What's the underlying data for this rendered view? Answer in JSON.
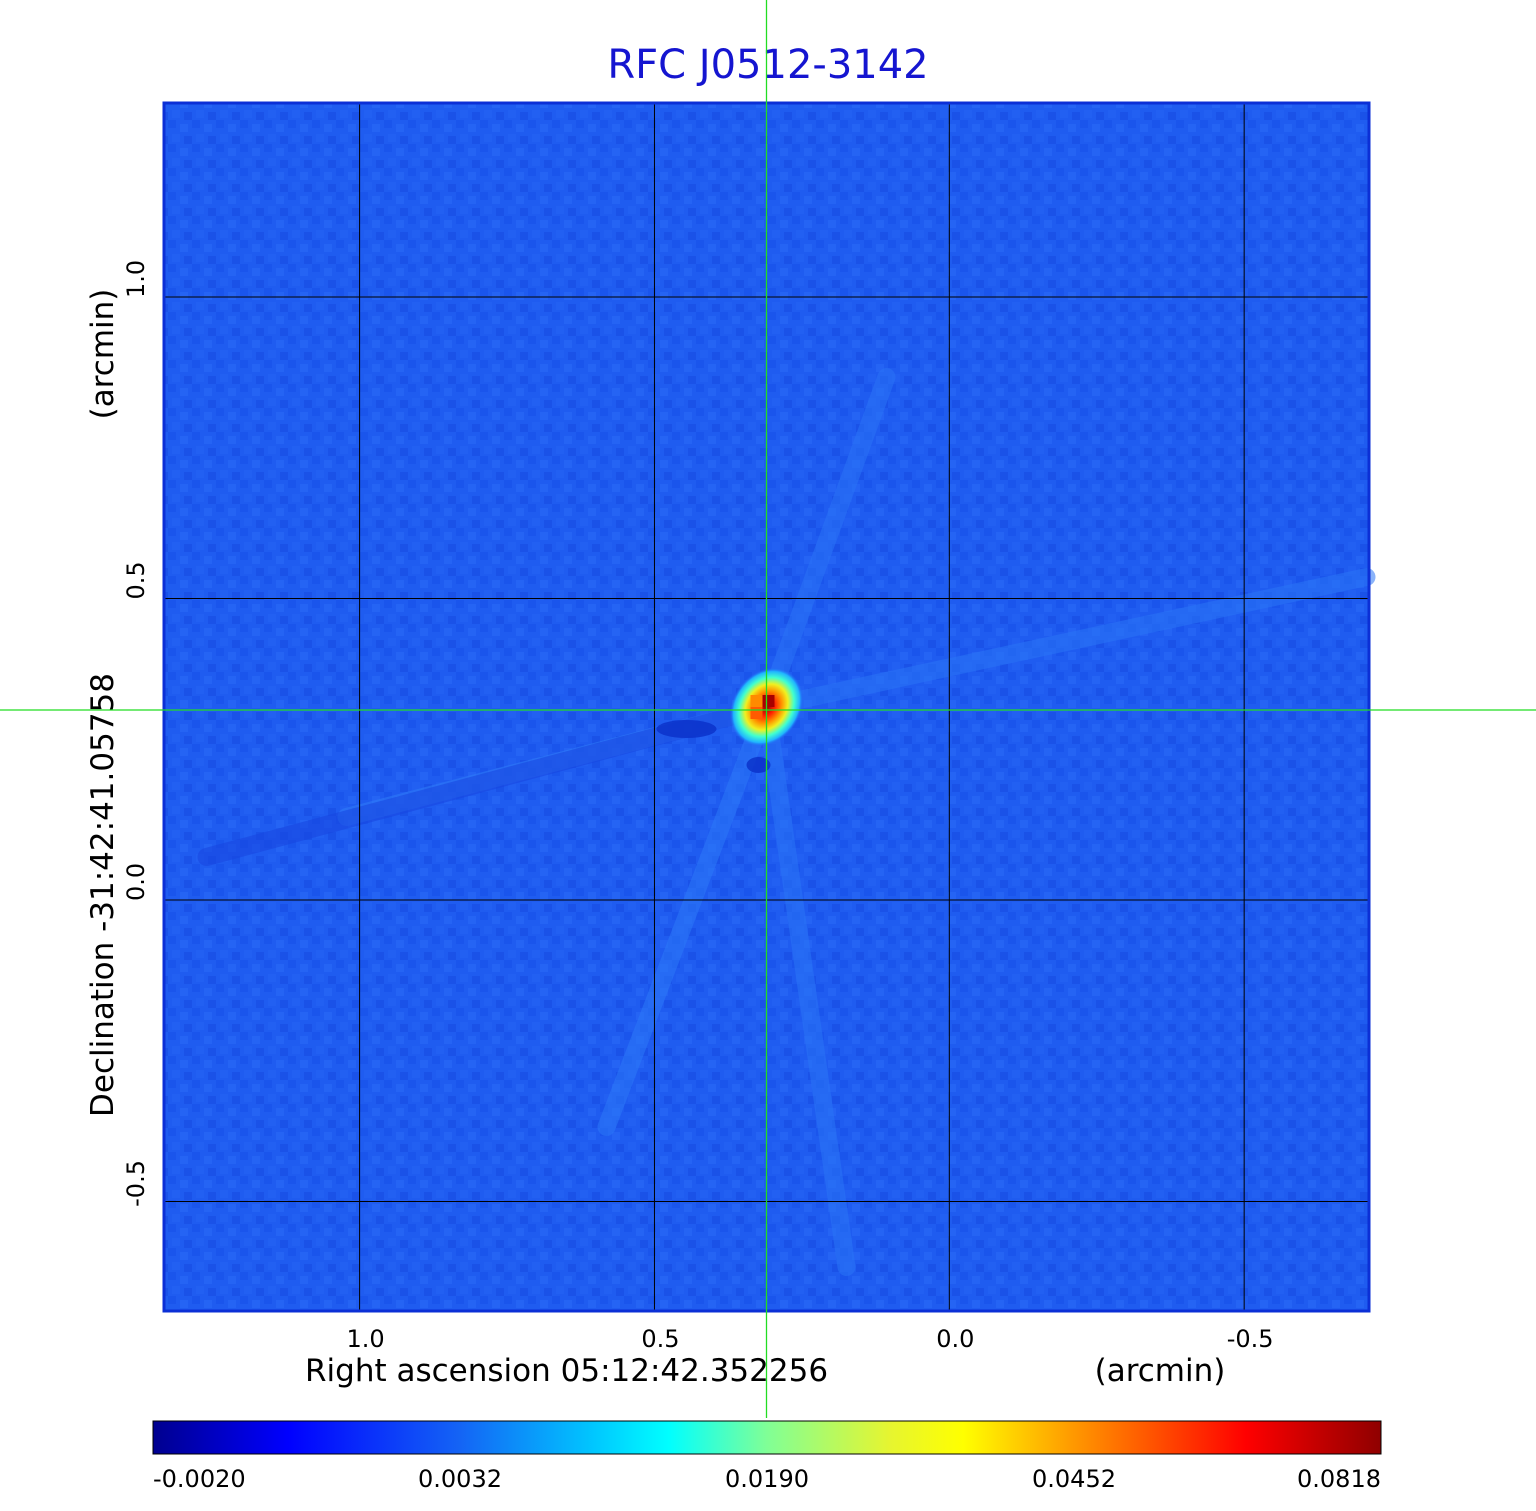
{
  "chart_data": {
    "type": "heatmap",
    "title": "RFC J0512-3142",
    "xlabel": "Right ascension  05:12:42.352256",
    "xunit": "(arcmin)",
    "ylabel": "Declination  -31:42:41.05758",
    "yunit": "(arcmin)",
    "x_ticks": [
      {
        "value": 1.0,
        "label": "1.0"
      },
      {
        "value": 0.5,
        "label": "0.5"
      },
      {
        "value": 0.0,
        "label": "0.0"
      },
      {
        "value": -0.5,
        "label": "-0.5"
      }
    ],
    "y_ticks": [
      {
        "value": 1.0,
        "label": "1.0"
      },
      {
        "value": 0.5,
        "label": "0.5"
      },
      {
        "value": 0.0,
        "label": "0.0"
      },
      {
        "value": -0.5,
        "label": "-0.5"
      }
    ],
    "xlim": [
      1.33,
      -0.71
    ],
    "ylim": [
      -0.68,
      1.32
    ],
    "grid": true,
    "crosshair": {
      "x": 0.31,
      "y": 0.315
    },
    "source_peak": {
      "x": 0.31,
      "y": 0.32,
      "value": 0.0818
    },
    "colormap": "jet",
    "colorbar": {
      "tick_labels": [
        "-0.0020",
        "0.0032",
        "0.0190",
        "0.0452",
        "0.0818"
      ],
      "min": -0.002,
      "max": 0.0818
    },
    "background_color": "#1f5cf0",
    "frame_color": "#0b2fd6",
    "grid_color": "#000000",
    "crosshair_color": "#22dd22",
    "title_color": "#1515d0"
  }
}
